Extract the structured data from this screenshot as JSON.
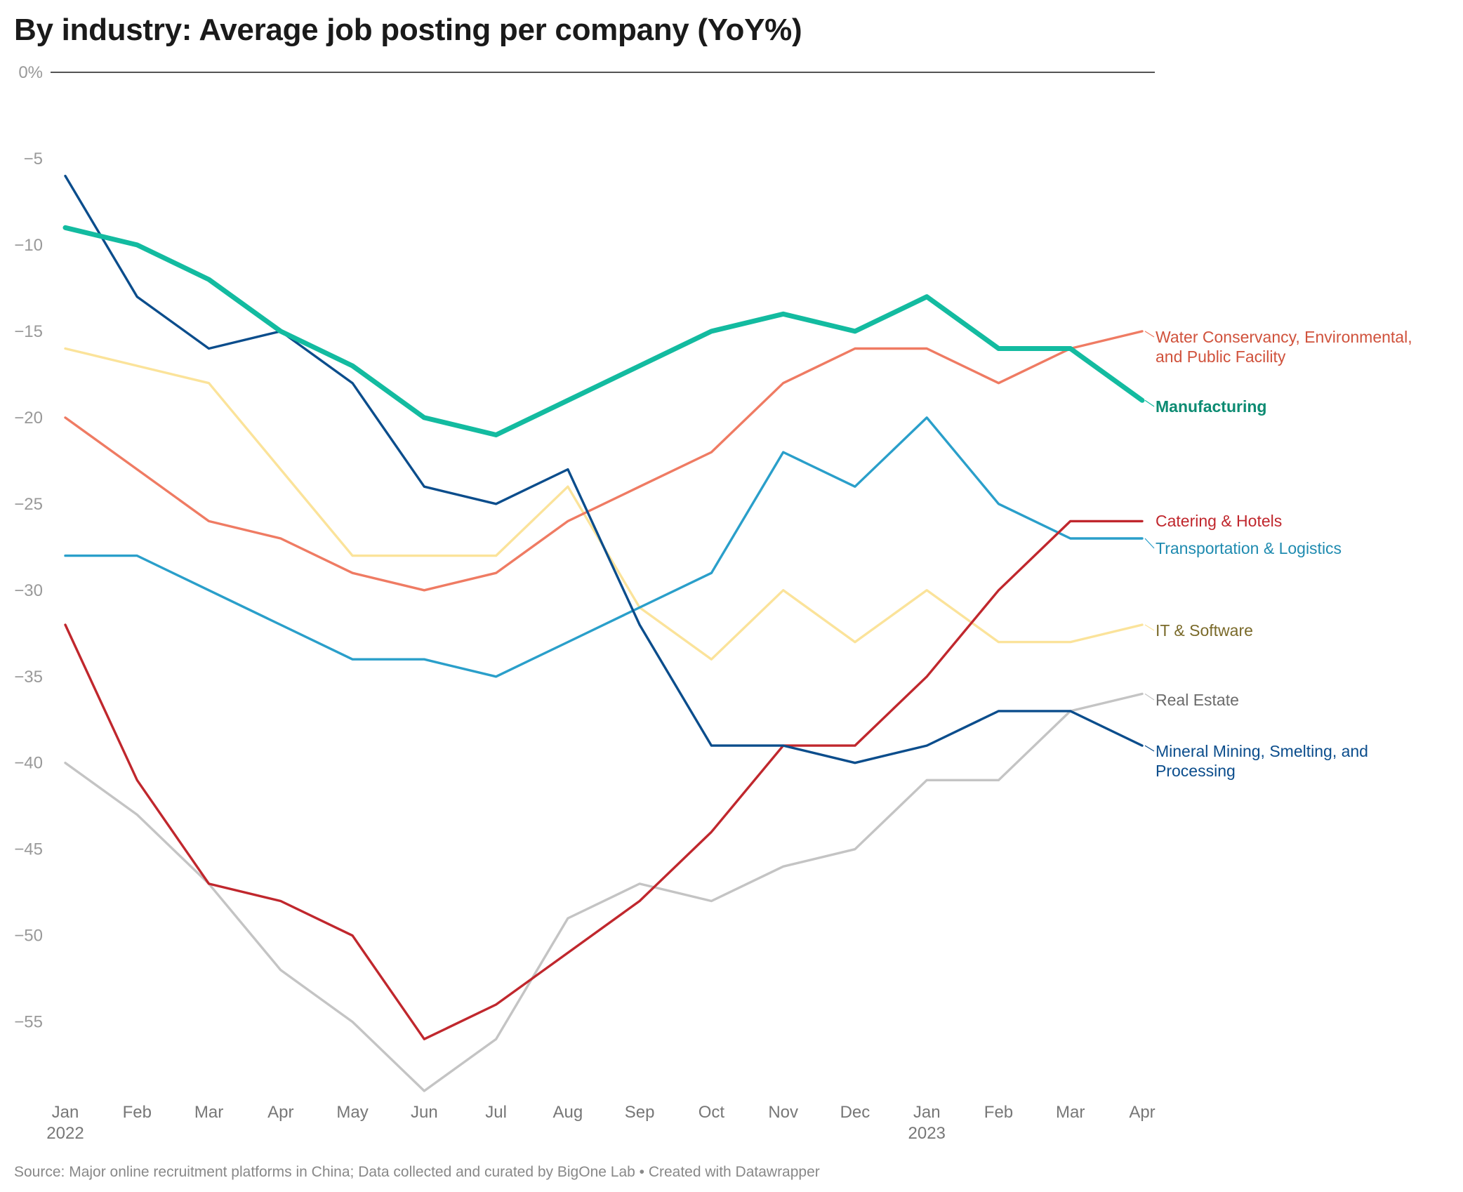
{
  "title": "By industry: Average job posting per company (YoY%)",
  "footer": "Source: Major online recruitment platforms in China; Data collected and curated by BigOne Lab • Created with Datawrapper",
  "chart_data": {
    "type": "line",
    "title": "By industry: Average job posting per company (YoY%)",
    "xlabel": "",
    "ylabel": "",
    "ylim": [
      -59,
      0
    ],
    "grid": false,
    "yticks": [
      0,
      -5,
      -10,
      -15,
      -20,
      -25,
      -30,
      -35,
      -40,
      -45,
      -50,
      -55
    ],
    "ytick_labels": [
      "0%",
      "−5",
      "−10",
      "−15",
      "−20",
      "−25",
      "−30",
      "−35",
      "−40",
      "−45",
      "−50",
      "−55"
    ],
    "categories": [
      "Jan",
      "Feb",
      "Mar",
      "Apr",
      "May",
      "Jun",
      "Jul",
      "Aug",
      "Sep",
      "Oct",
      "Nov",
      "Dec",
      "Jan",
      "Feb",
      "Mar",
      "Apr"
    ],
    "year_labels": [
      {
        "index": 0,
        "label": "2022"
      },
      {
        "index": 12,
        "label": "2023"
      }
    ],
    "series": [
      {
        "name": "Real Estate",
        "label_lines": [
          "Real Estate"
        ],
        "color": "#c4c4c4",
        "label_color": "#6b6b6b",
        "bold": false,
        "values": [
          -40,
          -43,
          -47,
          -52,
          -55,
          -59,
          -56,
          -49,
          -47,
          -48,
          -46,
          -45,
          -41,
          -41,
          -37,
          -36
        ]
      },
      {
        "name": "IT & Software",
        "label_lines": [
          "IT & Software"
        ],
        "color": "#fbe39a",
        "label_color": "#7a6a2a",
        "bold": false,
        "values": [
          -16,
          -17,
          -18,
          -23,
          -28,
          -28,
          -28,
          -24,
          -31,
          -34,
          -30,
          -33,
          -30,
          -33,
          -33,
          -32
        ]
      },
      {
        "name": "Transportation & Logistics",
        "label_lines": [
          "Transportation & Logistics"
        ],
        "color": "#2a9fca",
        "label_color": "#1f8bb0",
        "bold": false,
        "values": [
          -28,
          -28,
          -30,
          -32,
          -34,
          -34,
          -35,
          -33,
          -31,
          -29,
          -22,
          -24,
          -20,
          -25,
          -27,
          -27
        ]
      },
      {
        "name": "Water Conservancy, Environmental, and Public Facility",
        "label_lines": [
          "Water Conservancy, Environmental,",
          "and Public Facility"
        ],
        "color": "#ef7b63",
        "label_color": "#d0523c",
        "bold": false,
        "values": [
          -20,
          -23,
          -26,
          -27,
          -29,
          -30,
          -29,
          -26,
          -24,
          -22,
          -18,
          -16,
          -16,
          -18,
          -16,
          -15
        ]
      },
      {
        "name": "Catering & Hotels",
        "label_lines": [
          "Catering & Hotels"
        ],
        "color": "#c0272d",
        "label_color": "#c0272d",
        "bold": false,
        "values": [
          -32,
          -41,
          -47,
          -48,
          -50,
          -56,
          -54,
          -51,
          -48,
          -44,
          -39,
          -39,
          -35,
          -30,
          -26,
          -26
        ]
      },
      {
        "name": "Mineral Mining, Smelting, and Processing",
        "label_lines": [
          "Mineral Mining, Smelting, and",
          "Processing"
        ],
        "color": "#0b4d8c",
        "label_color": "#0b4d8c",
        "bold": false,
        "values": [
          -6,
          -13,
          -16,
          -15,
          -18,
          -24,
          -25,
          -23,
          -32,
          -39,
          -39,
          -40,
          -39,
          -37,
          -37,
          -39
        ]
      },
      {
        "name": "Manufacturing",
        "label_lines": [
          "Manufacturing"
        ],
        "color": "#13bba0",
        "label_color": "#0c8b72",
        "bold": true,
        "values": [
          -9,
          -10,
          -12,
          -15,
          -17,
          -20,
          -21,
          -19,
          -17,
          -15,
          -14,
          -15,
          -13,
          -16,
          -16,
          -19
        ]
      }
    ]
  }
}
